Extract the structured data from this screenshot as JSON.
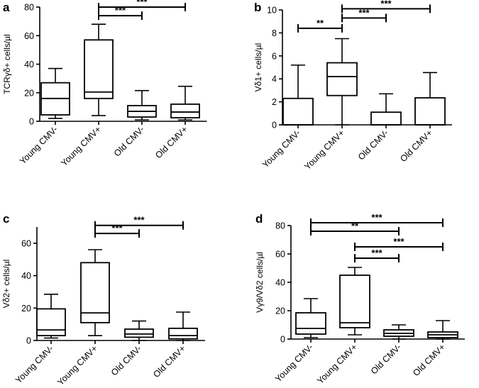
{
  "chart_data": [
    {
      "type": "boxplot",
      "panel": "a",
      "ylabel": "TCRγδ+ cells/µl",
      "ylim": [
        0,
        80
      ],
      "yticks": [
        0,
        20,
        40,
        60,
        80
      ],
      "categories": [
        "Young CMV-",
        "Young CMV+",
        "Old CMV-",
        "Old CMV+"
      ],
      "boxes": [
        {
          "min": 2,
          "q1": 4.5,
          "median": 16,
          "q3": 27,
          "max": 37
        },
        {
          "min": 4,
          "q1": 16,
          "median": 20.5,
          "q3": 57,
          "max": 68
        },
        {
          "min": 1,
          "q1": 3,
          "median": 7,
          "q3": 11,
          "max": 21.5
        },
        {
          "min": 1,
          "q1": 2.5,
          "median": 6.5,
          "q3": 12,
          "max": 24.5
        }
      ],
      "significance": [
        {
          "from": 1,
          "to": 2,
          "label": "***",
          "y": 74
        },
        {
          "from": 1,
          "to": 3,
          "label": "***",
          "y": 80
        }
      ]
    },
    {
      "type": "boxplot",
      "panel": "b",
      "ylabel": "Vδ1+ cells/µl",
      "ylim": [
        0,
        10
      ],
      "yticks": [
        0,
        2,
        4,
        6,
        8,
        10
      ],
      "categories": [
        "Young CMV-",
        "Young CMV+",
        "Old CMV-",
        "Old CMV+"
      ],
      "boxes": [
        {
          "min": 0,
          "q1": 0,
          "median": 0,
          "q3": 2.3,
          "max": 5.2
        },
        {
          "min": 0,
          "q1": 2.55,
          "median": 4.2,
          "q3": 5.4,
          "max": 7.5
        },
        {
          "min": 0,
          "q1": 0,
          "median": 0,
          "q3": 1.1,
          "max": 2.7
        },
        {
          "min": 0,
          "q1": 0,
          "median": 0,
          "q3": 2.35,
          "max": 4.55
        }
      ],
      "significance": [
        {
          "from": 0,
          "to": 1,
          "label": "**",
          "y": 8.4
        },
        {
          "from": 1,
          "to": 2,
          "label": "***",
          "y": 9.3
        },
        {
          "from": 1,
          "to": 3,
          "label": "***",
          "y": 10.1
        }
      ]
    },
    {
      "type": "boxplot",
      "panel": "c",
      "ylabel": "Vδ2+ cells/µl",
      "ylim": [
        0,
        70
      ],
      "yticks": [
        0,
        20,
        40,
        60
      ],
      "categories": [
        "Young CMV-",
        "Young CMV+",
        "Old CMV-",
        "Old CMV+"
      ],
      "boxes": [
        {
          "min": 1.5,
          "q1": 3,
          "median": 6.5,
          "q3": 19.5,
          "max": 28.5
        },
        {
          "min": 3,
          "q1": 11,
          "median": 17,
          "q3": 48,
          "max": 56
        },
        {
          "min": 0,
          "q1": 2,
          "median": 4,
          "q3": 7,
          "max": 12
        },
        {
          "min": 0,
          "q1": 1,
          "median": 3,
          "q3": 7.5,
          "max": 17.5
        }
      ],
      "significance": [
        {
          "from": 1,
          "to": 2,
          "label": "***",
          "y": 66
        },
        {
          "from": 1,
          "to": 3,
          "label": "***",
          "y": 71
        }
      ]
    },
    {
      "type": "boxplot",
      "panel": "d",
      "ylabel": "Vγ9/Vδ2 cells/µl",
      "ylim": [
        0,
        80
      ],
      "yticks": [
        0,
        20,
        40,
        60,
        80
      ],
      "categories": [
        "Young CMV-",
        "Young CMV+",
        "Old CMV-",
        "Old CMV+"
      ],
      "boxes": [
        {
          "min": 1,
          "q1": 3.5,
          "median": 7.5,
          "q3": 18.5,
          "max": 28.5
        },
        {
          "min": 3,
          "q1": 8,
          "median": 11.5,
          "q3": 45,
          "max": 50.5
        },
        {
          "min": 0,
          "q1": 2,
          "median": 4,
          "q3": 6.5,
          "max": 10
        },
        {
          "min": 0,
          "q1": 1,
          "median": 3,
          "q3": 5,
          "max": 13
        }
      ],
      "significance": [
        {
          "from": 1,
          "to": 2,
          "label": "***",
          "y": 57
        },
        {
          "from": 1,
          "to": 3,
          "label": "***",
          "y": 65
        },
        {
          "from": 0,
          "to": 2,
          "label": "**",
          "y": 76
        },
        {
          "from": 0,
          "to": 3,
          "label": "***",
          "y": 82
        }
      ]
    }
  ]
}
